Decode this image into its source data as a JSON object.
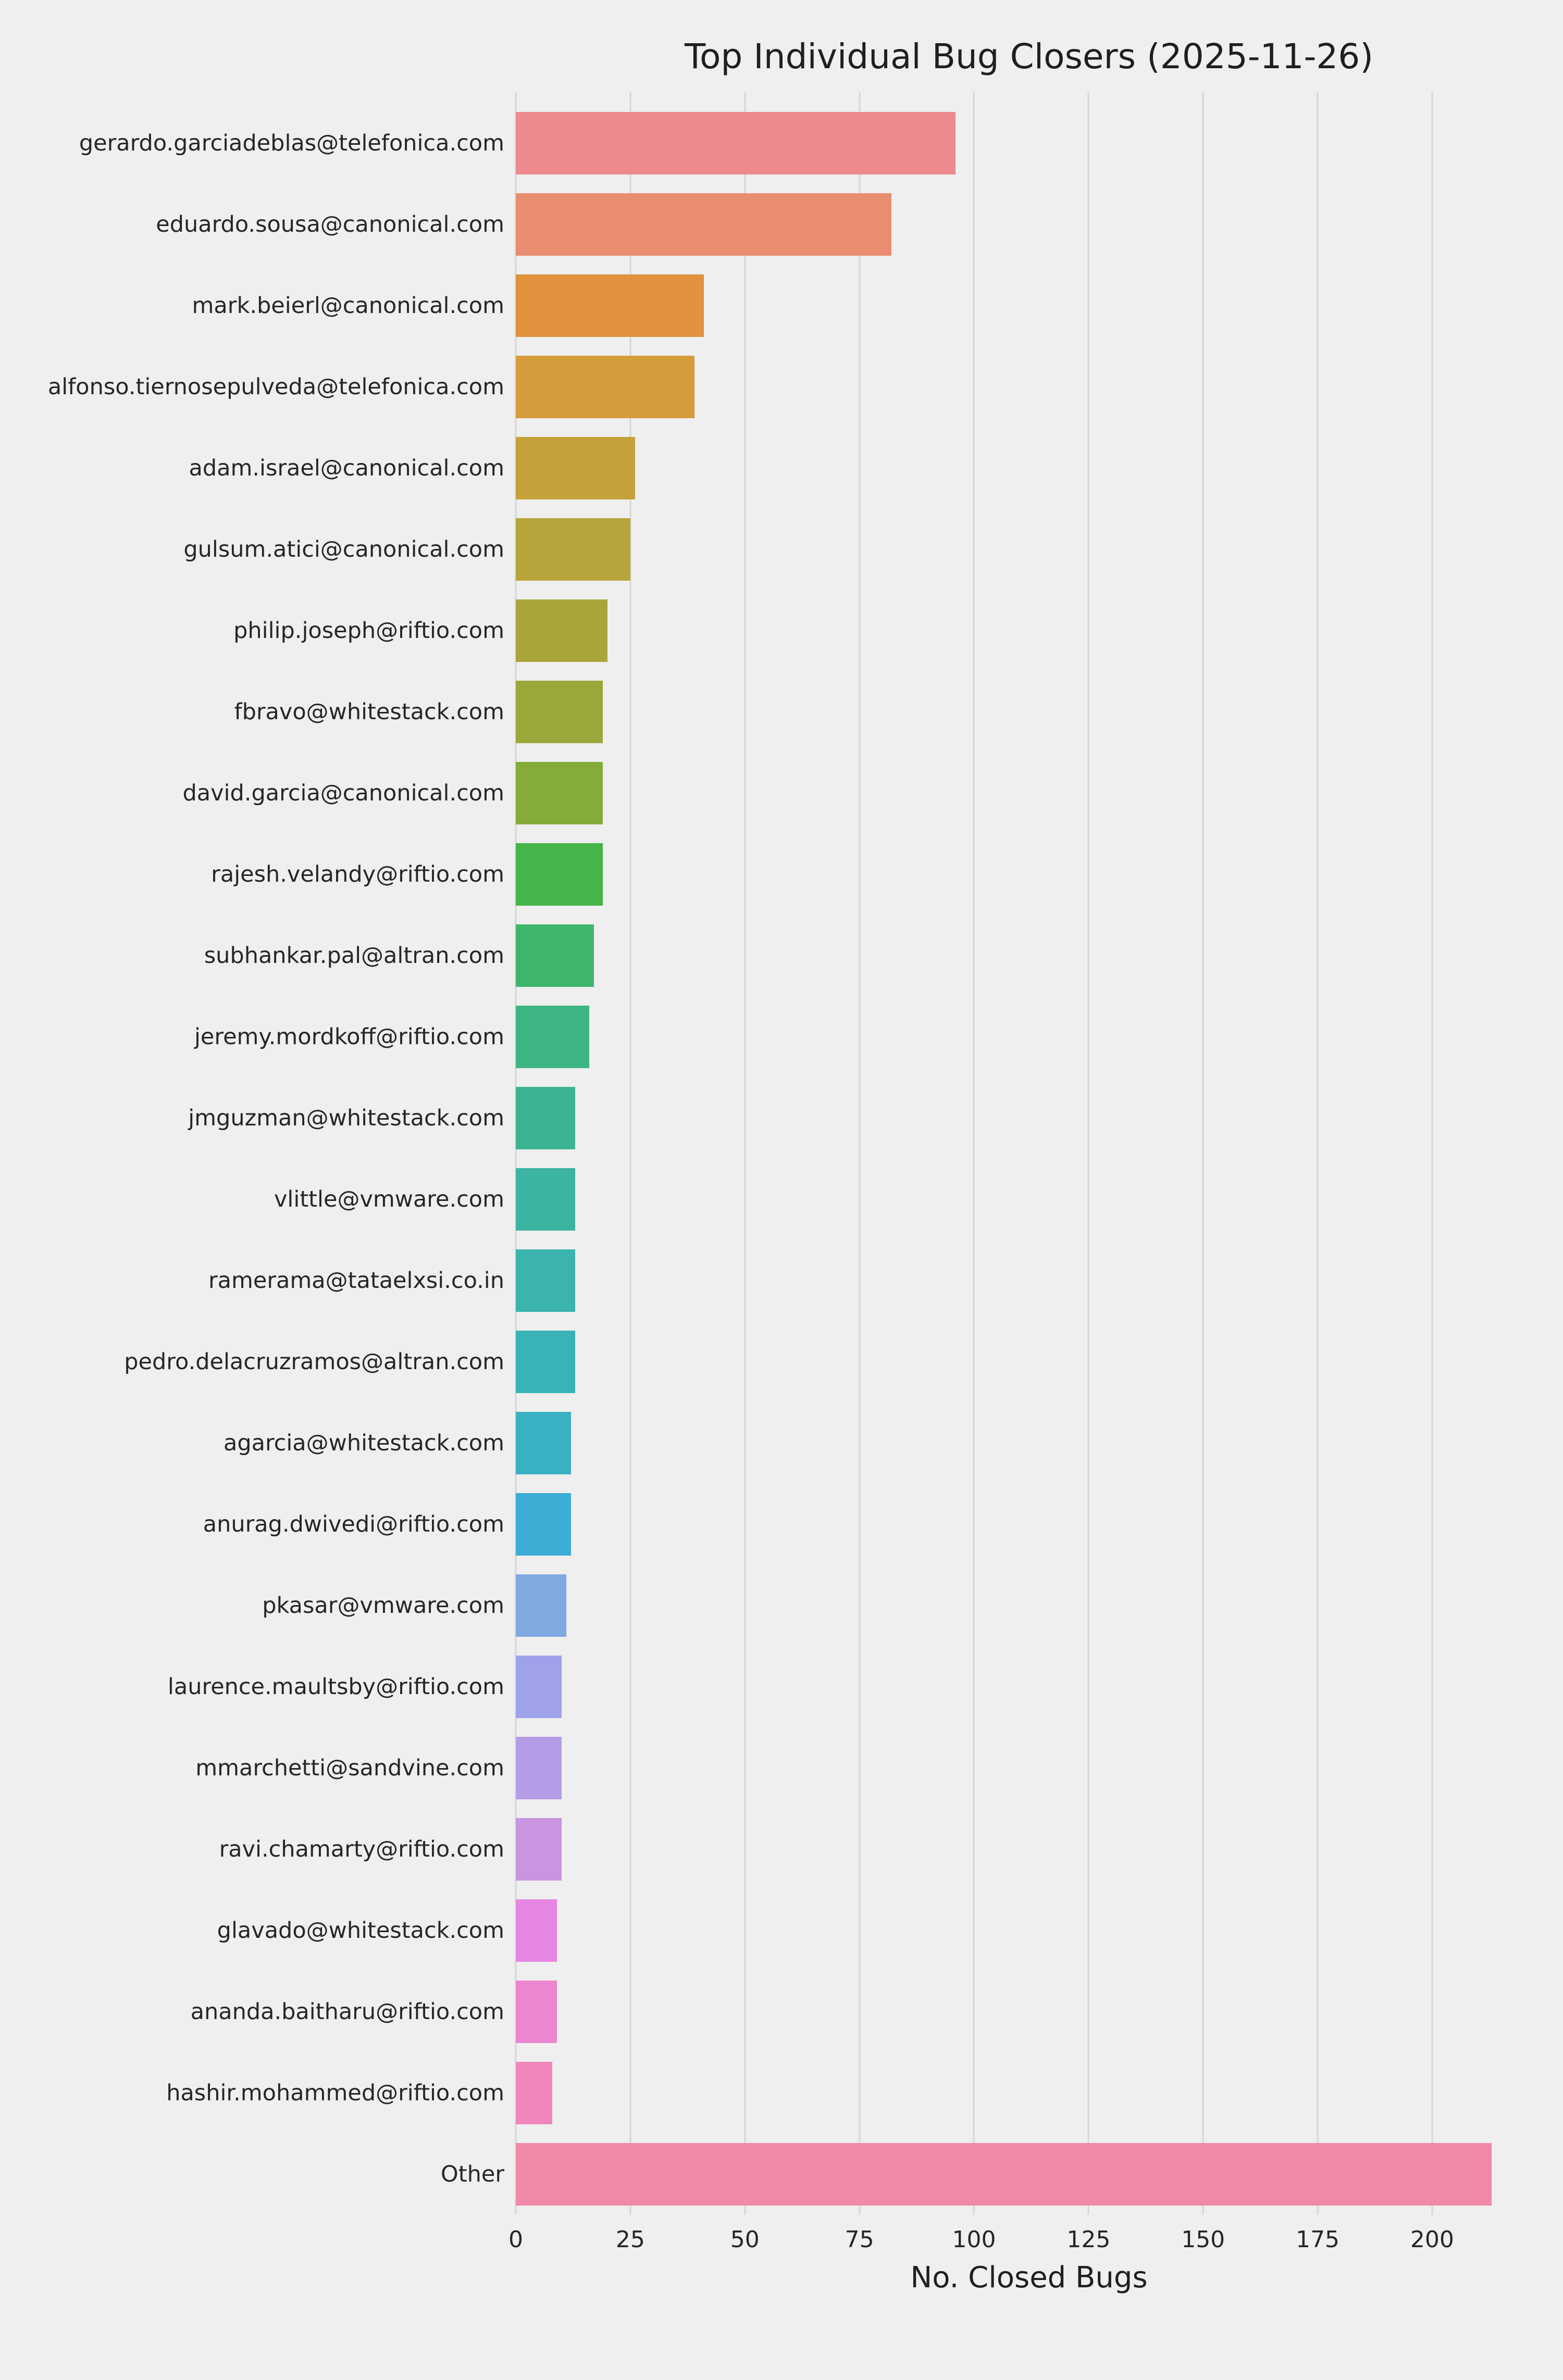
{
  "title": "Top Individual Bug Closers (2025-11-26)",
  "chart_data": {
    "type": "bar",
    "orientation": "horizontal",
    "title": "Top Individual Bug Closers (2025-11-26)",
    "xlabel": "No. Closed Bugs",
    "ylabel": "",
    "xlim": [
      0,
      224
    ],
    "xticks": [
      0,
      25,
      50,
      75,
      100,
      125,
      150,
      175,
      200
    ],
    "grid": "vertical",
    "legend": "none",
    "palette": "husl",
    "background_color": "#efefef",
    "gridline_color": "#d6d6d6",
    "categories": [
      "gerardo.garciadeblas@telefonica.com",
      "eduardo.sousa@canonical.com",
      "mark.beierl@canonical.com",
      "alfonso.tiernosepulveda@telefonica.com",
      "adam.israel@canonical.com",
      "gulsum.atici@canonical.com",
      "philip.joseph@riftio.com",
      "fbravo@whitestack.com",
      "david.garcia@canonical.com",
      "rajesh.velandy@riftio.com",
      "subhankar.pal@altran.com",
      "jeremy.mordkoff@riftio.com",
      "jmguzman@whitestack.com",
      "vlittle@vmware.com",
      "ramerama@tataelxsi.co.in",
      "pedro.delacruzramos@altran.com",
      "agarcia@whitestack.com",
      "anurag.dwivedi@riftio.com",
      "pkasar@vmware.com",
      "laurence.maultsby@riftio.com",
      "mmarchetti@sandvine.com",
      "ravi.chamarty@riftio.com",
      "glavado@whitestack.com",
      "ananda.baitharu@riftio.com",
      "hashir.mohammed@riftio.com",
      "Other"
    ],
    "values": [
      96,
      82,
      41,
      39,
      26,
      25,
      20,
      19,
      19,
      19,
      17,
      16,
      13,
      13,
      13,
      13,
      12,
      12,
      11,
      10,
      10,
      10,
      9,
      9,
      8,
      213
    ],
    "colors": [
      "#ec8a8e",
      "#e98d70",
      "#e0923c",
      "#d69c3b",
      "#c4a23a",
      "#b7a43a",
      "#a9a639",
      "#9aa839",
      "#85ab39",
      "#45b449",
      "#3eb56b",
      "#3db583",
      "#3cb494",
      "#3bb4a1",
      "#3ab4ac",
      "#39b3b7",
      "#39b1c3",
      "#3dadd5",
      "#7fa9e0",
      "#9fa2ea",
      "#b59ce6",
      "#ca94e1",
      "#e586e2",
      "#ec86cf",
      "#ef87bb",
      "#f189a9"
    ]
  }
}
